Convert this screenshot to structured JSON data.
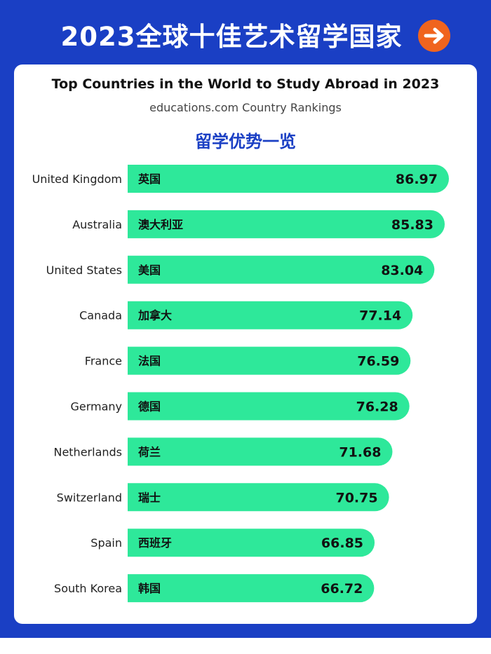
{
  "header": {
    "title": "2023全球十佳艺术留学国家",
    "arrow_icon": "arrow-right-icon",
    "accent_color": "#f0641e",
    "background_color": "#1a3fc4"
  },
  "card": {
    "title": "Top Countries in the World to Study Abroad in 2023",
    "subtitle": "educations.com Country Rankings",
    "heading": "留学优势一览"
  },
  "chart_data": {
    "type": "bar",
    "orientation": "horizontal",
    "categories": [
      "United Kingdom",
      "Australia",
      "United States",
      "Canada",
      "France",
      "Germany",
      "Netherlands",
      "Switzerland",
      "Spain",
      "South Korea"
    ],
    "category_labels_zh": [
      "英国",
      "澳大利亚",
      "美国",
      "加拿大",
      "法国",
      "德国",
      "荷兰",
      "瑞士",
      "西班牙",
      "韩国"
    ],
    "values": [
      "86.97",
      "85.83",
      "83.04",
      "77.14",
      "76.59",
      "76.28",
      "71.68",
      "70.75",
      "66.85",
      "66.72"
    ],
    "bar_color": "#2ee89a",
    "title": "Top Countries in the World to Study Abroad in 2023",
    "xlabel": "",
    "ylabel": "",
    "grid": false,
    "legend": "none"
  }
}
